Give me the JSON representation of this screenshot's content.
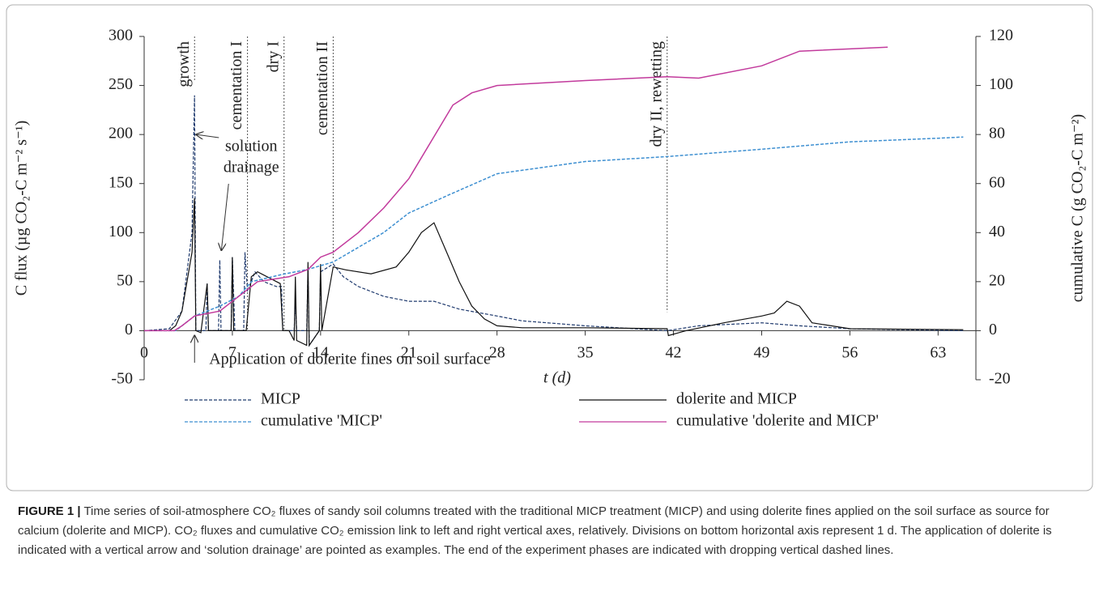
{
  "chart_data": {
    "type": "line",
    "xlabel": "t (d)",
    "ylabel": "C flux (µg CO₂-C m⁻² s⁻¹)",
    "y2label": "cumulative C (g CO₂-C m⁻²)",
    "xlim": [
      0,
      66
    ],
    "xticks": [
      0,
      7,
      14,
      21,
      28,
      35,
      42,
      49,
      56,
      63
    ],
    "ylim": [
      -50,
      300
    ],
    "yticks": [
      -50,
      0,
      50,
      100,
      150,
      200,
      250,
      300
    ],
    "y2lim": [
      -20,
      120
    ],
    "y2ticks": [
      -20,
      0,
      20,
      40,
      60,
      80,
      100,
      120
    ],
    "series": [
      {
        "name": "MICP",
        "color": "#1f3a6e",
        "dashed": true,
        "x": [
          0,
          2,
          3,
          3.8,
          4,
          4.1,
          4.9,
          5,
          5.1,
          5.9,
          6,
          6.1,
          6.9,
          7,
          7.2,
          7.9,
          8,
          8.2,
          8.8,
          9.5,
          10.5,
          10.9,
          11,
          11.9,
          12,
          12.1,
          12.9,
          13,
          13.1,
          13.9,
          14,
          15,
          15.8,
          17,
          19,
          21,
          23,
          25,
          28,
          30,
          35,
          41.5,
          44,
          49,
          52,
          56,
          65
        ],
        "values": [
          0,
          2,
          20,
          100,
          240,
          0,
          0,
          48,
          0,
          0,
          72,
          0,
          0,
          75,
          0,
          0,
          80,
          40,
          60,
          50,
          45,
          45,
          0,
          0,
          30,
          0,
          0,
          62,
          -15,
          0,
          60,
          68,
          55,
          45,
          35,
          30,
          30,
          22,
          15,
          10,
          5,
          0,
          5,
          8,
          5,
          2,
          0
        ]
      },
      {
        "name": "dolerite and MICP",
        "color": "#111111",
        "dashed": false,
        "x": [
          0,
          2,
          2.5,
          3,
          3.8,
          4,
          4.1,
          4.5,
          5,
          5.1,
          6.9,
          7,
          7.1,
          8,
          8.1,
          8.5,
          9,
          10.8,
          11,
          11.5,
          11.9,
          12,
          12.1,
          12.9,
          13,
          13.1,
          13.9,
          14,
          14.1,
          15,
          16,
          18,
          20,
          21,
          22,
          23,
          24,
          25,
          26,
          27,
          28,
          30,
          35,
          41.5,
          41.6,
          43,
          46,
          49,
          50,
          51,
          52,
          53,
          56,
          65
        ],
        "values": [
          0,
          0,
          5,
          20,
          80,
          135,
          0,
          -2,
          48,
          0,
          0,
          75,
          0,
          0,
          0,
          55,
          60,
          48,
          0,
          0,
          -10,
          55,
          -10,
          -15,
          70,
          -15,
          0,
          68,
          0,
          65,
          62,
          58,
          65,
          80,
          100,
          110,
          80,
          50,
          25,
          12,
          5,
          3,
          3,
          2,
          -5,
          0,
          8,
          15,
          18,
          30,
          25,
          8,
          2,
          1
        ]
      },
      {
        "name": "cumulative 'MICP'",
        "color": "#3d8fd1",
        "dashed": true,
        "axis": "y2",
        "x": [
          0,
          2.5,
          4,
          6,
          7.5,
          8.5,
          11,
          13,
          15,
          17,
          19,
          21,
          24,
          28,
          35,
          41.5,
          44,
          49,
          56,
          63,
          65
        ],
        "values": [
          0,
          0,
          6,
          10,
          14,
          20,
          23,
          25,
          28,
          34,
          40,
          48,
          55,
          64,
          69,
          71,
          72,
          74,
          77,
          78.5,
          79
        ]
      },
      {
        "name": "cumulative 'dolerite and MICP'",
        "color": "#c23a9c",
        "dashed": false,
        "axis": "y2",
        "x": [
          0,
          2.4,
          3,
          4,
          6,
          9,
          11.5,
          13,
          14,
          15,
          17,
          19,
          21,
          24.5,
          26,
          28,
          35,
          41.5,
          44,
          49,
          52,
          59
        ],
        "values": [
          0,
          0,
          2,
          6,
          8,
          20,
          22,
          25,
          30,
          32,
          40,
          50,
          62,
          92,
          97,
          100,
          102,
          103.6,
          103,
          108,
          114,
          115.6
        ]
      }
    ],
    "phases": [
      {
        "x": 4,
        "y_end": 255,
        "label": "growth"
      },
      {
        "x": 8.2,
        "y_end": 0,
        "label": "cementation I"
      },
      {
        "x": 11.1,
        "y_end": 0,
        "label": "dry I"
      },
      {
        "x": 15,
        "y_end": 73,
        "label": "cementation II"
      },
      {
        "x": 41.5,
        "y_end": 19,
        "label": "dry II, rewetting"
      }
    ],
    "annotations": [
      {
        "lines": [
          "solution",
          "drainage"
        ],
        "targets": [
          {
            "x": 4,
            "y": 200
          },
          {
            "x": 6,
            "y": 82
          }
        ]
      },
      {
        "lines": [
          "Application of dolerite fines on soil surface"
        ],
        "targets": [
          {
            "x": 4,
            "y": -5
          }
        ]
      }
    ],
    "caption": {
      "label": "FIGURE 1 |",
      "text": "Time series of soil-atmosphere CO₂ fluxes of sandy soil columns treated with the traditional MICP treatment (MICP) and using dolerite fines applied on the soil surface as source for calcium (dolerite and MICP). CO₂ fluxes and cumulative CO₂ emission link to left and right vertical axes, relatively. Divisions on bottom horizontal axis represent 1 d. The application of dolerite is indicated with a vertical arrow and ‘solution drainage’ are pointed as examples. The end of the experiment phases are indicated with dropping vertical dashed lines."
    }
  }
}
